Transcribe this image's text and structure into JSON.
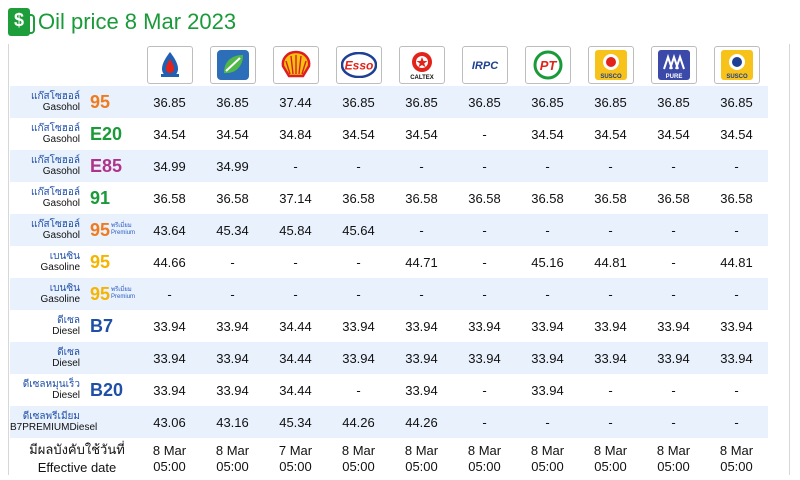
{
  "header": {
    "title": "Oil price 8 Mar 2023"
  },
  "brands": [
    {
      "name": "ptt-logo"
    },
    {
      "name": "bangchak-logo"
    },
    {
      "name": "shell-logo"
    },
    {
      "name": "esso-logo"
    },
    {
      "name": "caltex-logo",
      "text": "CALTEX"
    },
    {
      "name": "irpc-logo",
      "text": "IRPC"
    },
    {
      "name": "pt-logo",
      "text": "PT"
    },
    {
      "name": "susco-logo",
      "text": "SUSCO"
    },
    {
      "name": "pure-logo",
      "text": "PURE"
    },
    {
      "name": "susco-dealers-logo",
      "text": "SUSCO"
    }
  ],
  "colors": {
    "title": "#1a9a38",
    "row_stripe": "#e9f1fd",
    "g95": "#f07b1e",
    "e20": "#1a9a38",
    "e85": "#b0338a",
    "g91": "#1a9a38",
    "gasoline95": "#f5b400",
    "diesel": "#1f4fa6"
  },
  "rows": [
    {
      "thai": "แก๊สโซฮอล์",
      "en": "Gasohol",
      "grade": "95",
      "color": "#f07b1e",
      "prem_th": "",
      "prem_en": "",
      "prices": [
        "36.85",
        "36.85",
        "37.44",
        "36.85",
        "36.85",
        "36.85",
        "36.85",
        "36.85",
        "36.85",
        "36.85"
      ]
    },
    {
      "thai": "แก๊สโซฮอล์",
      "en": "Gasohol",
      "grade": "E20",
      "color": "#1a9a38",
      "prem_th": "",
      "prem_en": "",
      "prices": [
        "34.54",
        "34.54",
        "34.84",
        "34.54",
        "34.54",
        "-",
        "34.54",
        "34.54",
        "34.54",
        "34.54"
      ]
    },
    {
      "thai": "แก๊สโซฮอล์",
      "en": "Gasohol",
      "grade": "E85",
      "color": "#b0338a",
      "prem_th": "",
      "prem_en": "",
      "prices": [
        "34.99",
        "34.99",
        "-",
        "-",
        "-",
        "-",
        "-",
        "-",
        "-",
        "-"
      ]
    },
    {
      "thai": "แก๊สโซฮอล์",
      "en": "Gasohol",
      "grade": "91",
      "color": "#1a9a38",
      "prem_th": "",
      "prem_en": "",
      "prices": [
        "36.58",
        "36.58",
        "37.14",
        "36.58",
        "36.58",
        "36.58",
        "36.58",
        "36.58",
        "36.58",
        "36.58"
      ]
    },
    {
      "thai": "แก๊สโซฮอล์",
      "en": "Gasohol",
      "grade": "95",
      "color": "#f07b1e",
      "prem_th": "พรีเมี่ยม",
      "prem_en": "Premium",
      "prices": [
        "43.64",
        "45.34",
        "45.84",
        "45.64",
        "-",
        "-",
        "-",
        "-",
        "-",
        "-"
      ]
    },
    {
      "thai": "เบนซิน",
      "en": "Gasoline",
      "grade": "95",
      "color": "#f5b400",
      "prem_th": "",
      "prem_en": "",
      "prices": [
        "44.66",
        "-",
        "-",
        "-",
        "44.71",
        "-",
        "45.16",
        "44.81",
        "-",
        "44.81"
      ]
    },
    {
      "thai": "เบนซิน",
      "en": "Gasoline",
      "grade": "95",
      "color": "#f5b400",
      "prem_th": "พรีเมี่ยม",
      "prem_en": "Premium",
      "prices": [
        "-",
        "-",
        "-",
        "-",
        "-",
        "-",
        "-",
        "-",
        "-",
        "-"
      ]
    },
    {
      "thai": "ดีเซล",
      "en": "Diesel",
      "grade": "B7",
      "color": "#1f4fa6",
      "prem_th": "",
      "prem_en": "",
      "prices": [
        "33.94",
        "33.94",
        "34.44",
        "33.94",
        "33.94",
        "33.94",
        "33.94",
        "33.94",
        "33.94",
        "33.94"
      ]
    },
    {
      "thai": "ดีเซล",
      "en": "Diesel",
      "grade": "",
      "color": "#1f4fa6",
      "prem_th": "",
      "prem_en": "",
      "prices": [
        "33.94",
        "33.94",
        "34.44",
        "33.94",
        "33.94",
        "33.94",
        "33.94",
        "33.94",
        "33.94",
        "33.94"
      ]
    },
    {
      "thai": "ดีเซลหมุนเร็ว",
      "en": "Diesel",
      "grade": "B20",
      "color": "#1f4fa6",
      "prem_th": "",
      "prem_en": "",
      "prices": [
        "33.94",
        "33.94",
        "34.44",
        "-",
        "33.94",
        "-",
        "33.94",
        "-",
        "-",
        "-"
      ]
    },
    {
      "thai": "ดีเซลพรีเมียม",
      "en": "B7PREMIUMDiesel",
      "grade": "",
      "color": "#1f4fa6",
      "prem_th": "",
      "prem_en": "",
      "prices": [
        "43.06",
        "43.16",
        "45.34",
        "44.26",
        "44.26",
        "-",
        "-",
        "-",
        "-",
        "-"
      ]
    }
  ],
  "effective": {
    "label_th": "มีผลบังคับใช้วันที่",
    "label_en": "Effective date",
    "dates": [
      "8 Mar",
      "8 Mar",
      "7 Mar",
      "8 Mar",
      "8 Mar",
      "8 Mar",
      "8 Mar",
      "8 Mar",
      "8 Mar",
      "8 Mar"
    ],
    "times": [
      "05:00",
      "05:00",
      "05:00",
      "05:00",
      "05:00",
      "05:00",
      "05:00",
      "05:00",
      "05:00",
      "05:00"
    ]
  }
}
